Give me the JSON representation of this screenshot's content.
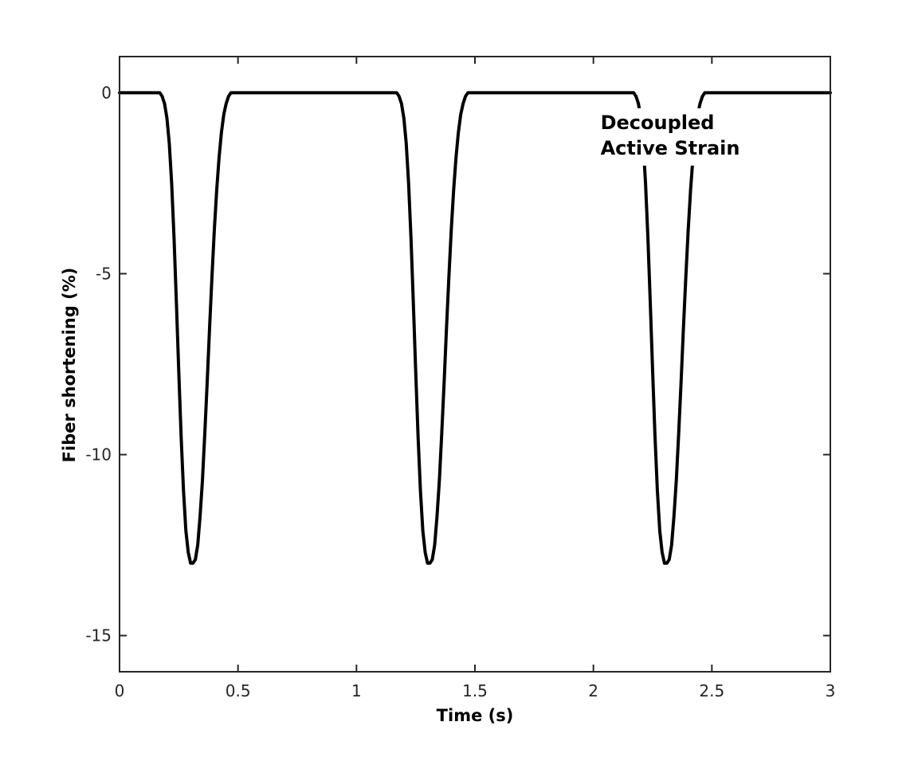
{
  "chart_data": {
    "type": "line",
    "title": "",
    "xlabel": "Time (s)",
    "ylabel": "Fiber shortening (%)",
    "xlim": [
      0,
      3
    ],
    "ylim": [
      -16,
      1
    ],
    "xticks": [
      0,
      0.5,
      1,
      1.5,
      2,
      2.5,
      3
    ],
    "xtick_labels": [
      "0",
      "0.5",
      "1",
      "1.5",
      "2",
      "2.5",
      "3"
    ],
    "yticks": [
      0,
      -5,
      -10,
      -15
    ],
    "ytick_labels": [
      "0",
      "-5",
      "-10",
      "-15"
    ],
    "grid": false,
    "legend": "none",
    "annotation": {
      "lines": [
        "Decoupled",
        "Active Strain"
      ],
      "x": 2.03,
      "y": -1.0
    },
    "series": [
      {
        "color": "#000000",
        "x": [
          0,
          0.17,
          0.18,
          0.19,
          0.2,
          0.21,
          0.22,
          0.23,
          0.24,
          0.25,
          0.26,
          0.27,
          0.28,
          0.29,
          0.3,
          0.31,
          0.32,
          0.33,
          0.34,
          0.35,
          0.36,
          0.37,
          0.38,
          0.39,
          0.4,
          0.41,
          0.42,
          0.43,
          0.44,
          0.45,
          0.46,
          0.47,
          0.48,
          1.17,
          1.18,
          1.19,
          1.2,
          1.21,
          1.22,
          1.23,
          1.24,
          1.25,
          1.26,
          1.27,
          1.28,
          1.29,
          1.3,
          1.31,
          1.32,
          1.33,
          1.34,
          1.35,
          1.36,
          1.37,
          1.38,
          1.39,
          1.4,
          1.41,
          1.42,
          1.43,
          1.44,
          1.45,
          1.46,
          1.47,
          1.48,
          2.17,
          2.18,
          2.19,
          2.2,
          2.21,
          2.22,
          2.23,
          2.24,
          2.25,
          2.26,
          2.27,
          2.28,
          2.29,
          2.3,
          2.31,
          2.32,
          2.33,
          2.34,
          2.35,
          2.36,
          2.37,
          2.38,
          2.39,
          2.4,
          2.41,
          2.42,
          2.43,
          2.44,
          2.45,
          2.46,
          2.47,
          2.48,
          3
        ],
        "y": [
          0,
          0,
          -0.1,
          -0.3,
          -0.7,
          -1.4,
          -2.5,
          -4.0,
          -5.8,
          -7.7,
          -9.5,
          -11.0,
          -12.1,
          -12.7,
          -13.0,
          -13.0,
          -12.9,
          -12.5,
          -11.7,
          -10.7,
          -9.4,
          -8.0,
          -6.5,
          -5.1,
          -3.8,
          -2.7,
          -1.8,
          -1.1,
          -0.6,
          -0.3,
          -0.1,
          0,
          0,
          0,
          -0.1,
          -0.3,
          -0.7,
          -1.4,
          -2.5,
          -4.0,
          -5.8,
          -7.7,
          -9.5,
          -11.0,
          -12.1,
          -12.7,
          -13.0,
          -13.0,
          -12.9,
          -12.5,
          -11.7,
          -10.7,
          -9.4,
          -8.0,
          -6.5,
          -5.1,
          -3.8,
          -2.7,
          -1.8,
          -1.1,
          -0.6,
          -0.3,
          -0.1,
          0,
          0,
          0,
          -0.1,
          -0.3,
          -0.7,
          -1.4,
          -2.5,
          -4.0,
          -5.8,
          -7.7,
          -9.5,
          -11.0,
          -12.1,
          -12.7,
          -13.0,
          -13.0,
          -12.9,
          -12.5,
          -11.7,
          -10.7,
          -9.4,
          -8.0,
          -6.5,
          -5.1,
          -3.8,
          -2.7,
          -1.8,
          -1.1,
          -0.6,
          -0.3,
          -0.1,
          0,
          0,
          0
        ]
      }
    ]
  }
}
